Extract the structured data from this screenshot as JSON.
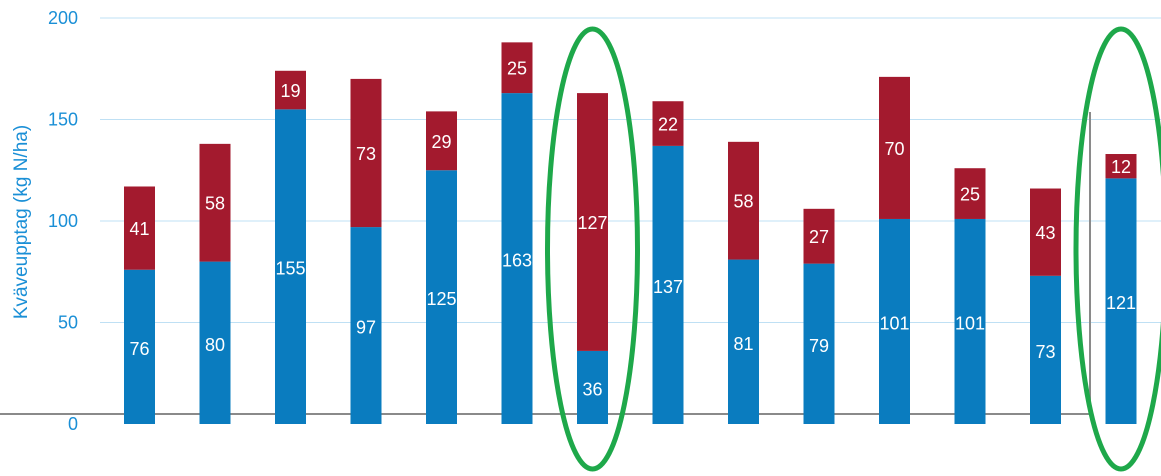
{
  "chart_data": {
    "type": "bar",
    "stacked": true,
    "title": "",
    "xlabel": "",
    "ylabel": "Kväveupptag (kg N/ha)",
    "ylim": [
      0,
      200
    ],
    "yticks": [
      "0",
      "50",
      "100",
      "150",
      "200"
    ],
    "grid": true,
    "legend": "none",
    "series": [
      {
        "color": "#0a7cbf",
        "values": [
          76,
          80,
          155,
          97,
          125,
          163,
          36,
          137,
          81,
          79,
          101,
          101,
          73,
          121
        ]
      },
      {
        "color": "#a31a2e",
        "values": [
          41,
          58,
          19,
          73,
          29,
          25,
          127,
          22,
          58,
          27,
          70,
          25,
          43,
          12
        ]
      }
    ],
    "highlighted_bars": [
      7,
      14
    ],
    "colors": {
      "axis_text": "#1a8fd6",
      "gridline": "#bfe0f4",
      "highlight": "#1ea84a"
    }
  }
}
